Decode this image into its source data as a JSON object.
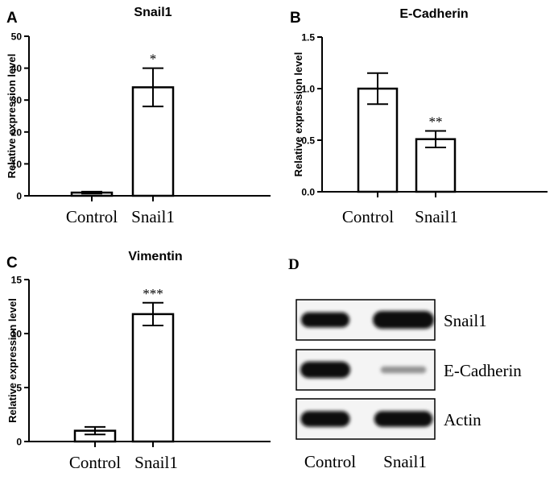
{
  "chart_data": [
    {
      "type": "bar",
      "panel": "A",
      "title": "Snail1",
      "ylabel": "Relative expression level",
      "categories": [
        "Control",
        "Snail1"
      ],
      "values": [
        1.0,
        34.0
      ],
      "errors": [
        0.3,
        6.0
      ],
      "significance": [
        "",
        "*"
      ],
      "ylim": [
        0,
        50
      ],
      "yticks": [
        "0",
        "10",
        "20",
        "30",
        "40",
        "50"
      ],
      "yticks_values": [
        0,
        10,
        20,
        30,
        40,
        50
      ]
    },
    {
      "type": "bar",
      "panel": "B",
      "title": "E-Cadherin",
      "ylabel": "Relative expression level",
      "categories": [
        "Control",
        "Snail1"
      ],
      "values": [
        1.0,
        0.51
      ],
      "errors": [
        0.15,
        0.08
      ],
      "significance": [
        "",
        "**"
      ],
      "ylim": [
        0,
        1.5
      ],
      "yticks": [
        "0.0",
        "0.5",
        "1.0",
        "1.5"
      ],
      "yticks_values": [
        0,
        0.5,
        1.0,
        1.5
      ]
    },
    {
      "type": "bar",
      "panel": "C",
      "title": "Vimentin",
      "ylabel": "Relative expression level",
      "categories": [
        "Control",
        "Snail1"
      ],
      "values": [
        1.0,
        11.8
      ],
      "errors": [
        0.35,
        1.05
      ],
      "significance": [
        "",
        "***"
      ],
      "ylim": [
        0,
        15
      ],
      "yticks": [
        "0",
        "5",
        "10",
        "15"
      ],
      "yticks_values": [
        0,
        5,
        10,
        15
      ]
    }
  ],
  "blot": {
    "panel": "D",
    "rows": [
      "Snail1",
      "E-Cadherin",
      "Actin"
    ],
    "lanes": [
      "Control",
      "Snail1"
    ],
    "intensity": [
      [
        0.8,
        1.0
      ],
      [
        0.9,
        0.15
      ],
      [
        0.85,
        0.85
      ]
    ],
    "band_color": "#0a0a0a"
  }
}
